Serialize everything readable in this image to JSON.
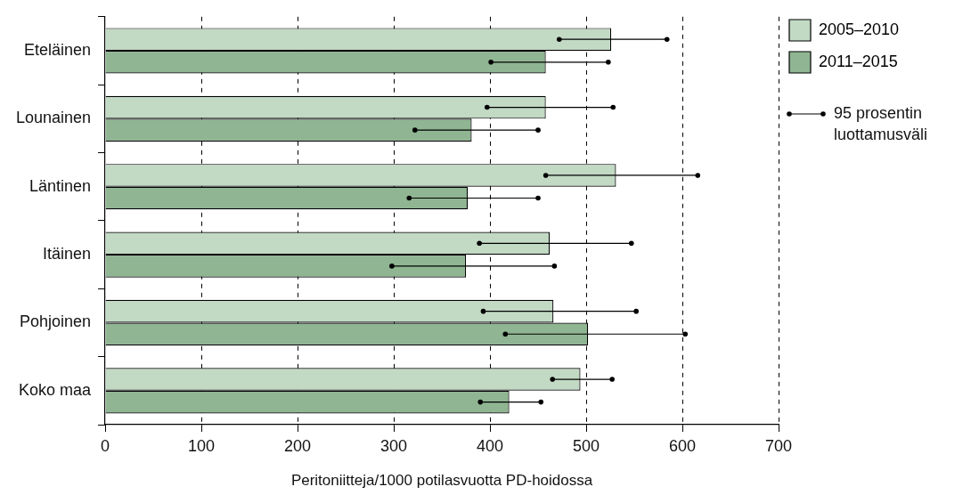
{
  "chart_data": {
    "type": "bar",
    "orientation": "horizontal",
    "xlabel": "Peritoniitteja/1000 potilasvuotta PD-hoidossa",
    "categories": [
      "Eteläinen",
      "Lounainen",
      "Läntinen",
      "Itäinen",
      "Pohjoinen",
      "Koko maa"
    ],
    "series": [
      {
        "name": "2005–2010",
        "color": "#c2d9c4",
        "values": [
          526,
          458,
          531,
          462,
          466,
          494
        ],
        "errors": [
          [
            472,
            584
          ],
          [
            397,
            528
          ],
          [
            458,
            616
          ],
          [
            389,
            547
          ],
          [
            393,
            552
          ],
          [
            465,
            527
          ]
        ]
      },
      {
        "name": "2011–2015",
        "color": "#8fb592",
        "values": [
          458,
          381,
          377,
          375,
          502,
          420
        ],
        "errors": [
          [
            401,
            523
          ],
          [
            322,
            450
          ],
          [
            316,
            450
          ],
          [
            298,
            467
          ],
          [
            416,
            603
          ],
          [
            390,
            453
          ]
        ]
      }
    ],
    "xlim": [
      0,
      700
    ],
    "xticks": [
      0,
      100,
      200,
      300,
      400,
      500,
      600,
      700
    ],
    "grid": "x",
    "legend": "top right",
    "annotations": [
      "95 prosentin luottamusväli"
    ]
  }
}
